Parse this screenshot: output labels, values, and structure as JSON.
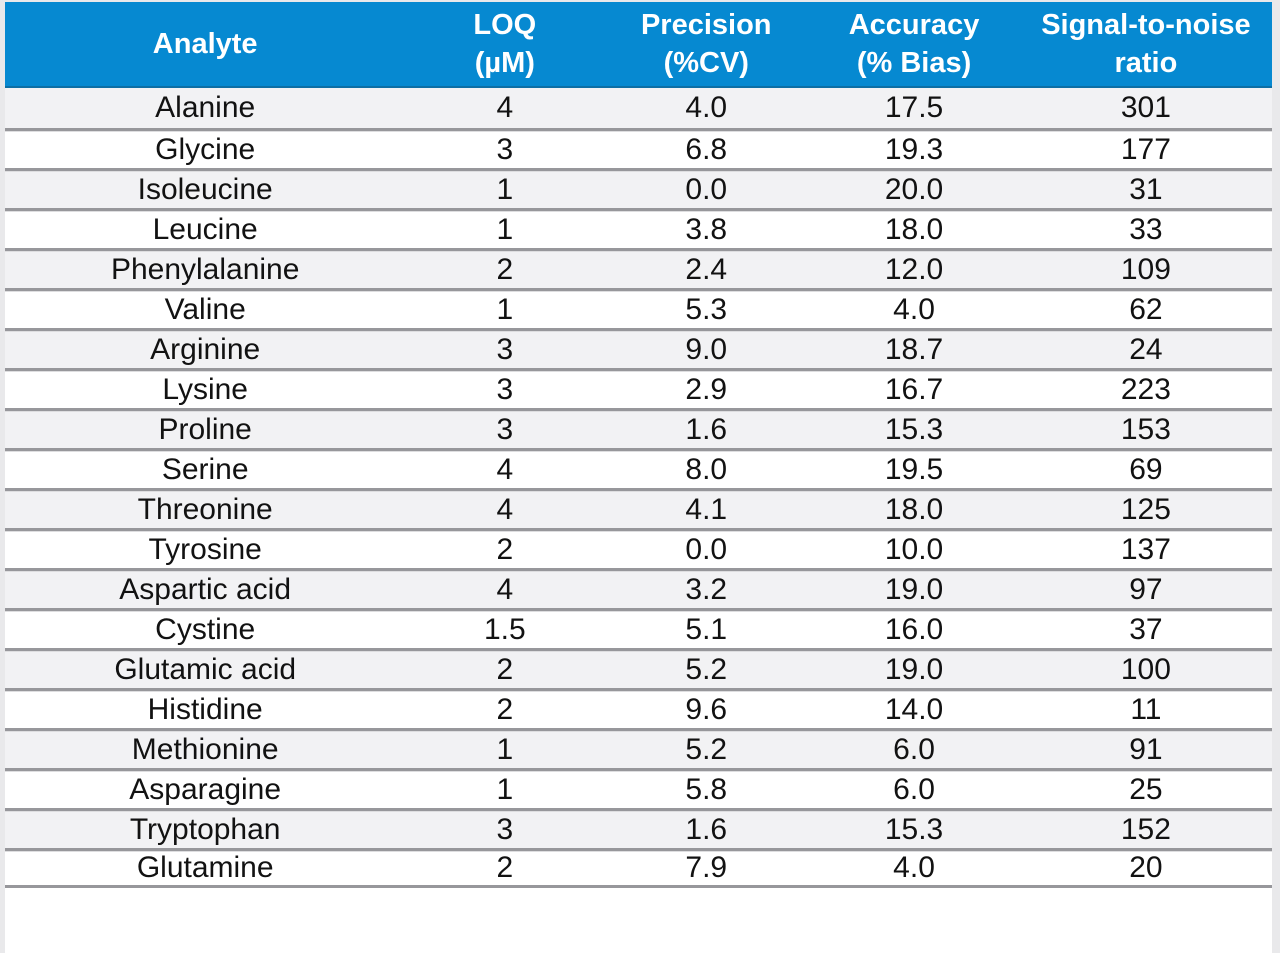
{
  "colors": {
    "header_bg": "#0689d1",
    "header_fg": "#ffffff",
    "header_border": "#0d6fa5",
    "row_odd": "#f2f2f4",
    "row_even": "#ffffff",
    "row_border_dark": "#97979b",
    "row_border_light": "#dedee0",
    "body_text": "#121212"
  },
  "chart_data": {
    "type": "table",
    "title": "",
    "columns": [
      {
        "line1": "Analyte",
        "line2": ""
      },
      {
        "line1": "LOQ",
        "line2": "(µM)"
      },
      {
        "line1": "Precision",
        "line2": "(%CV)"
      },
      {
        "line1": "Accuracy",
        "line2": "(% Bias)"
      },
      {
        "line1": "Signal-to-noise",
        "line2": "ratio"
      }
    ],
    "rows": [
      [
        "Alanine",
        "4",
        "4.0",
        "17.5",
        "301"
      ],
      [
        "Glycine",
        "3",
        "6.8",
        "19.3",
        "177"
      ],
      [
        "Isoleucine",
        "1",
        "0.0",
        "20.0",
        "31"
      ],
      [
        "Leucine",
        "1",
        "3.8",
        "18.0",
        "33"
      ],
      [
        "Phenylalanine",
        "2",
        "2.4",
        "12.0",
        "109"
      ],
      [
        "Valine",
        "1",
        "5.3",
        "4.0",
        "62"
      ],
      [
        "Arginine",
        "3",
        "9.0",
        "18.7",
        "24"
      ],
      [
        "Lysine",
        "3",
        "2.9",
        "16.7",
        "223"
      ],
      [
        "Proline",
        "3",
        "1.6",
        "15.3",
        "153"
      ],
      [
        "Serine",
        "4",
        "8.0",
        "19.5",
        "69"
      ],
      [
        "Threonine",
        "4",
        "4.1",
        "18.0",
        "125"
      ],
      [
        "Tyrosine",
        "2",
        "0.0",
        "10.0",
        "137"
      ],
      [
        "Aspartic acid",
        "4",
        "3.2",
        "19.0",
        "97"
      ],
      [
        "Cystine",
        "1.5",
        "5.1",
        "16.0",
        "37"
      ],
      [
        "Glutamic acid",
        "2",
        "5.2",
        "19.0",
        "100"
      ],
      [
        "Histidine",
        "2",
        "9.6",
        "14.0",
        "11"
      ],
      [
        "Methionine",
        "1",
        "5.2",
        "6.0",
        "91"
      ],
      [
        "Asparagine",
        "1",
        "5.8",
        "6.0",
        "25"
      ],
      [
        "Tryptophan",
        "3",
        "1.6",
        "15.3",
        "152"
      ],
      [
        "Glutamine",
        "2",
        "7.9",
        "4.0",
        "20"
      ]
    ]
  }
}
